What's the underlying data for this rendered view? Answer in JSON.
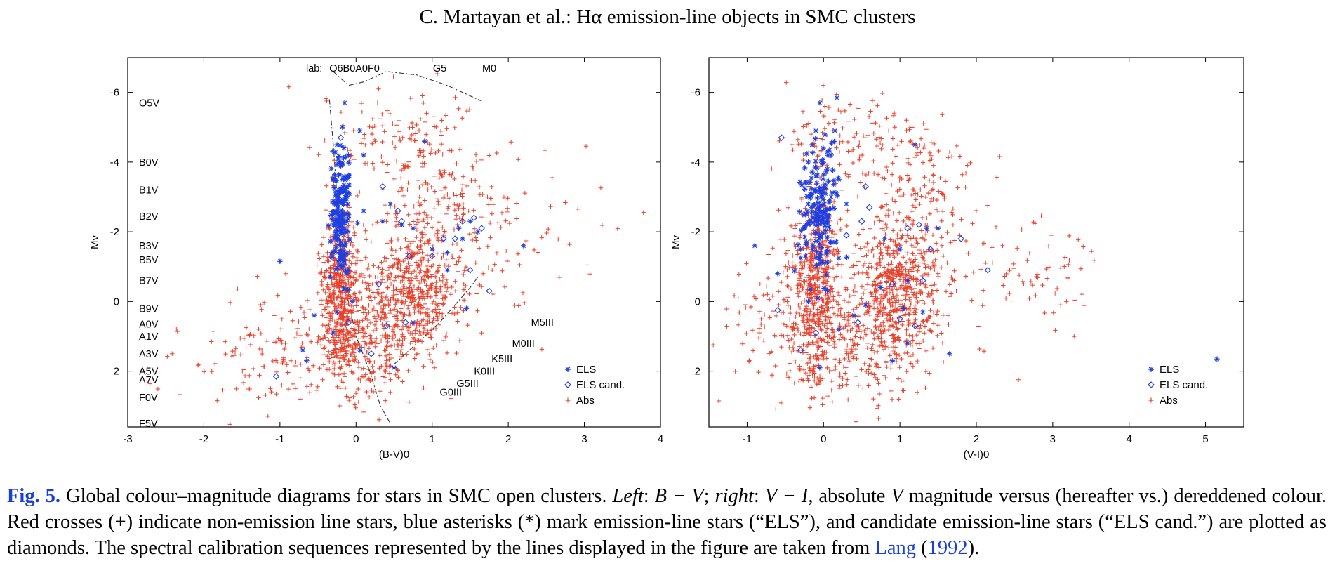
{
  "header": {
    "running_head": "C. Martayan et al.: Hα emission-line objects in SMC clusters"
  },
  "caption": {
    "fig_label": "Fig. 5.",
    "text_1": " Global colour–magnitude diagrams for stars in SMC open clusters. ",
    "left_word": "Left",
    "text_2": ": ",
    "bv_expr": "B − V",
    "text_3": "; ",
    "right_word": "right",
    "text_4": ": ",
    "vi_expr": "V − I",
    "text_5": ", absolute ",
    "v_expr": "V",
    "text_6": " magnitude versus (hereafter vs.) dereddened colour. Red crosses (+) indicate non-emission line stars, blue asterisks (*) mark emission-line stars (“ELS”), and candidate emission-line stars (“ELS cand.”) are plotted as diamonds. The spectral calibration sequences represented by the lines displayed in the figure are taken from ",
    "ref_name": "Lang",
    "ref_open": " (",
    "ref_year": "1992",
    "ref_close": ")."
  },
  "colors": {
    "abs": "#e8412c",
    "els": "#1f3fe0",
    "calibration_line": "#333333",
    "caption_link": "#1a3fd6"
  },
  "chart_data": [
    {
      "type": "scatter",
      "title": "",
      "xlabel": "(B-V)0",
      "ylabel": "Mv",
      "xlim": [
        -3,
        4
      ],
      "ylim": [
        3.6,
        -7
      ],
      "y_inverted": true,
      "x_ticks": [
        -3,
        -2,
        -1,
        0,
        1,
        2,
        3,
        4
      ],
      "y_ticks": [
        -6,
        -4,
        -2,
        0,
        2
      ],
      "grid": false,
      "legend_position": "bottom-right",
      "legend": [
        {
          "label": "ELS",
          "marker": "asterisk",
          "color": "#1f3fe0"
        },
        {
          "label": "ELS cand.",
          "marker": "diamond",
          "color": "#1f3fe0"
        },
        {
          "label": "Abs",
          "marker": "plus",
          "color": "#e8412c"
        }
      ],
      "main_sequence_labels": [
        {
          "label": "O5V",
          "y": -5.7
        },
        {
          "label": "B0V",
          "y": -4.0
        },
        {
          "label": "B1V",
          "y": -3.2
        },
        {
          "label": "B2V",
          "y": -2.45
        },
        {
          "label": "B3V",
          "y": -1.6
        },
        {
          "label": "B5V",
          "y": -1.2
        },
        {
          "label": "B7V",
          "y": -0.6
        },
        {
          "label": "B9V",
          "y": 0.2
        },
        {
          "label": "A0V",
          "y": 0.65
        },
        {
          "label": "A1V",
          "y": 1.0
        },
        {
          "label": "A3V",
          "y": 1.5
        },
        {
          "label": "A5V",
          "y": 2.0
        },
        {
          "label": "A7V",
          "y": 2.25
        },
        {
          "label": "F0V",
          "y": 2.75
        },
        {
          "label": "F5V",
          "y": 3.5
        }
      ],
      "top_label_prefix": "lab:",
      "top_labels": [
        {
          "label": "O6B0",
          "x": -0.18
        },
        {
          "label": "A0F0",
          "x": 0.15
        },
        {
          "label": "G5",
          "x": 1.1
        },
        {
          "label": "M0",
          "x": 1.75
        }
      ],
      "giant_labels": [
        {
          "label": "M5III",
          "x": 2.3,
          "y": 0.6
        },
        {
          "label": "M0III",
          "x": 2.05,
          "y": 1.2
        },
        {
          "label": "K5III",
          "x": 1.78,
          "y": 1.65
        },
        {
          "label": "K0III",
          "x": 1.55,
          "y": 2.0
        },
        {
          "label": "G5III",
          "x": 1.32,
          "y": 2.35
        },
        {
          "label": "G0III",
          "x": 1.1,
          "y": 2.6
        }
      ],
      "calibration_lines": [
        {
          "name": "main-sequence",
          "points": [
            [
              -0.35,
              -5.8
            ],
            [
              -0.3,
              -4.5
            ],
            [
              -0.25,
              -3.0
            ],
            [
              -0.2,
              -1.5
            ],
            [
              -0.12,
              -0.2
            ],
            [
              0.0,
              1.0
            ],
            [
              0.18,
              2.0
            ],
            [
              0.32,
              3.0
            ],
            [
              0.45,
              3.5
            ]
          ]
        },
        {
          "name": "giant-branch",
          "points": [
            [
              0.5,
              1.8
            ],
            [
              0.8,
              1.2
            ],
            [
              1.1,
              0.6
            ],
            [
              1.3,
              0.1
            ],
            [
              1.5,
              -0.4
            ],
            [
              1.6,
              -0.7
            ]
          ]
        },
        {
          "name": "supergiant-branch",
          "points": [
            [
              -0.3,
              -6.6
            ],
            [
              -0.1,
              -6.2
            ],
            [
              0.1,
              -6.3
            ],
            [
              0.4,
              -6.6
            ],
            [
              0.8,
              -6.5
            ],
            [
              1.2,
              -6.2
            ],
            [
              1.5,
              -5.9
            ],
            [
              1.65,
              -5.75
            ]
          ]
        }
      ],
      "els_points": [
        [
          -0.15,
          -5.7
        ],
        [
          -0.18,
          -5.0
        ],
        [
          0.05,
          -4.9
        ],
        [
          -0.25,
          -4.5
        ],
        [
          -0.1,
          -4.2
        ],
        [
          0.1,
          -4.2
        ],
        [
          -0.2,
          -3.9
        ],
        [
          -0.3,
          -3.5
        ],
        [
          -0.12,
          -3.3
        ],
        [
          -0.22,
          -3.1
        ],
        [
          -0.15,
          -2.9
        ],
        [
          -0.25,
          -2.6
        ],
        [
          -0.1,
          -2.5
        ],
        [
          0.1,
          -2.6
        ],
        [
          0.35,
          -2.3
        ],
        [
          0.45,
          -2.8
        ],
        [
          0.9,
          -4.6
        ],
        [
          0.6,
          -2.2
        ],
        [
          0.75,
          -2.1
        ],
        [
          1.35,
          -2.1
        ],
        [
          1.5,
          -2.3
        ],
        [
          1.6,
          -2.0
        ],
        [
          1.4,
          -1.8
        ],
        [
          1.0,
          -1.5
        ],
        [
          1.2,
          -1.4
        ],
        [
          -0.2,
          -2.0
        ],
        [
          -0.28,
          -1.8
        ],
        [
          -0.15,
          -1.6
        ],
        [
          -0.3,
          -1.4
        ],
        [
          -0.2,
          -1.2
        ],
        [
          -1.0,
          -1.15
        ],
        [
          -0.1,
          -0.9
        ],
        [
          -0.25,
          0.3
        ],
        [
          -0.55,
          0.4
        ],
        [
          -0.7,
          1.4
        ],
        [
          -0.65,
          1.7
        ],
        [
          -0.3,
          0.9
        ],
        [
          0.05,
          1.4
        ],
        [
          0.5,
          1.9
        ],
        [
          1.45,
          0.2
        ],
        [
          2.2,
          -1.6
        ],
        [
          0.75,
          0.6
        ],
        [
          -0.05,
          0.0
        ],
        [
          1.2,
          -0.9
        ]
      ],
      "els_cand_points": [
        [
          -0.2,
          -4.7
        ],
        [
          0.35,
          -3.3
        ],
        [
          0.55,
          -2.6
        ],
        [
          0.6,
          -2.3
        ],
        [
          0.7,
          -1.3
        ],
        [
          1.0,
          -1.3
        ],
        [
          1.3,
          -1.8
        ],
        [
          1.4,
          -2.3
        ],
        [
          1.55,
          -2.4
        ],
        [
          1.65,
          -2.1
        ],
        [
          1.5,
          -0.9
        ],
        [
          1.75,
          -0.3
        ],
        [
          0.3,
          -0.5
        ],
        [
          0.65,
          0.6
        ],
        [
          0.4,
          0.7
        ],
        [
          -0.1,
          0.6
        ],
        [
          0.2,
          1.5
        ],
        [
          -1.05,
          2.15
        ],
        [
          -0.2,
          -2.2
        ],
        [
          1.15,
          -1.8
        ]
      ]
    },
    {
      "type": "scatter",
      "title": "",
      "xlabel": "(V-I)0",
      "ylabel": "Mv",
      "xlim": [
        -1.5,
        5.5
      ],
      "ylim": [
        3.6,
        -7
      ],
      "y_inverted": true,
      "x_ticks": [
        -1,
        0,
        1,
        2,
        3,
        4,
        5
      ],
      "y_ticks": [
        -6,
        -4,
        -2,
        0,
        2
      ],
      "grid": false,
      "legend_position": "bottom-right",
      "legend": [
        {
          "label": "ELS",
          "marker": "asterisk",
          "color": "#1f3fe0"
        },
        {
          "label": "ELS cand.",
          "marker": "diamond",
          "color": "#1f3fe0"
        },
        {
          "label": "Abs",
          "marker": "plus",
          "color": "#e8412c"
        }
      ],
      "els_points": [
        [
          -0.05,
          -5.7
        ],
        [
          -0.1,
          -4.9
        ],
        [
          0.15,
          -4.9
        ],
        [
          -0.15,
          -4.5
        ],
        [
          0.1,
          -4.2
        ],
        [
          -0.2,
          -4.0
        ],
        [
          0.05,
          -3.8
        ],
        [
          -0.1,
          -3.6
        ],
        [
          0.2,
          -3.5
        ],
        [
          -0.05,
          -3.2
        ],
        [
          0.1,
          -3.0
        ],
        [
          -0.2,
          -2.8
        ],
        [
          0.3,
          -2.8
        ],
        [
          -0.1,
          -2.5
        ],
        [
          0.05,
          -2.3
        ],
        [
          -0.25,
          -2.1
        ],
        [
          -0.05,
          -1.9
        ],
        [
          0.15,
          -1.7
        ],
        [
          -0.3,
          -1.5
        ],
        [
          -0.05,
          -1.2
        ],
        [
          -0.9,
          -1.6
        ],
        [
          -0.6,
          -0.8
        ],
        [
          -0.2,
          0.0
        ],
        [
          0.2,
          0.8
        ],
        [
          -0.05,
          1.9
        ],
        [
          0.4,
          0.4
        ],
        [
          0.75,
          -0.4
        ],
        [
          1.1,
          -0.6
        ],
        [
          1.35,
          -2.1
        ],
        [
          1.5,
          -2.1
        ],
        [
          1.2,
          -4.5
        ],
        [
          1.0,
          -1.5
        ],
        [
          0.8,
          -1.8
        ],
        [
          1.3,
          0.3
        ],
        [
          1.05,
          0.2
        ],
        [
          1.1,
          1.2
        ],
        [
          1.65,
          1.5
        ],
        [
          0.9,
          1.7
        ],
        [
          5.15,
          1.65
        ],
        [
          0.55,
          0.1
        ]
      ],
      "els_cand_points": [
        [
          -0.55,
          -4.7
        ],
        [
          0.55,
          -3.3
        ],
        [
          0.6,
          -2.7
        ],
        [
          0.5,
          -2.3
        ],
        [
          1.1,
          -2.1
        ],
        [
          1.25,
          -2.2
        ],
        [
          1.4,
          -1.5
        ],
        [
          1.8,
          -1.8
        ],
        [
          1.3,
          -0.6
        ],
        [
          0.9,
          -0.5
        ],
        [
          2.15,
          -0.9
        ],
        [
          1.2,
          0.7
        ],
        [
          0.45,
          0.6
        ],
        [
          -0.1,
          0.9
        ],
        [
          -0.6,
          0.25
        ],
        [
          0.3,
          -1.9
        ],
        [
          -0.3,
          1.4
        ],
        [
          1.0,
          0.5
        ]
      ]
    }
  ]
}
